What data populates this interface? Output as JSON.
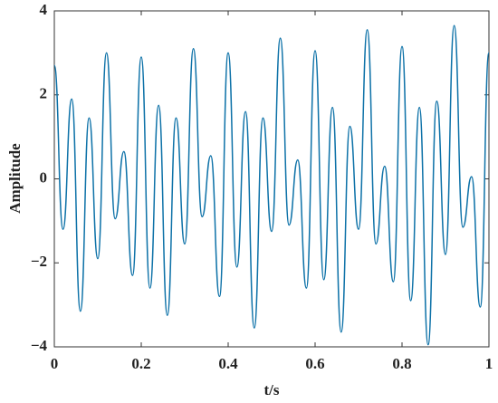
{
  "chart_data": {
    "type": "line",
    "x_label": "t/s",
    "y_label": "Amplitude",
    "x": [
      0,
      0.02,
      0.04,
      0.06,
      0.08,
      0.1,
      0.12,
      0.14,
      0.16,
      0.18,
      0.2,
      0.22,
      0.24,
      0.26,
      0.28,
      0.3,
      0.32,
      0.34,
      0.36,
      0.38,
      0.4,
      0.42,
      0.44,
      0.46,
      0.48,
      0.5,
      0.52,
      0.54,
      0.56,
      0.58,
      0.6,
      0.62,
      0.64,
      0.66,
      0.68,
      0.7,
      0.72,
      0.74,
      0.76,
      0.78,
      0.8,
      0.82,
      0.84,
      0.86,
      0.88,
      0.9,
      0.92,
      0.94,
      0.96,
      0.98,
      1
    ],
    "series": [
      {
        "color": "#0e72a8",
        "values": [
          2.7,
          -1.2,
          1.9,
          -3.15,
          1.45,
          -1.9,
          3.0,
          -0.95,
          0.65,
          -2.3,
          2.9,
          -2.6,
          1.75,
          -3.25,
          1.45,
          -1.55,
          3.1,
          -0.9,
          0.55,
          -2.8,
          3.0,
          -2.1,
          1.6,
          -3.55,
          1.45,
          -1.25,
          3.35,
          -1.1,
          0.45,
          -2.6,
          3.05,
          -2.4,
          1.7,
          -3.65,
          1.25,
          -1.2,
          3.55,
          -1.55,
          0.3,
          -2.45,
          3.15,
          -2.9,
          1.7,
          -3.95,
          1.85,
          -1.8,
          3.65,
          -1.15,
          0.05,
          -3.05,
          3.0
        ]
      }
    ],
    "xlim": [
      0,
      1
    ],
    "xticks": [
      0,
      0.2,
      0.4,
      0.6,
      0.8,
      1
    ],
    "ylim": [
      -4,
      4
    ],
    "yticks": [
      {
        "value": -4,
        "label": "−4"
      },
      {
        "value": -2,
        "label": "−2"
      },
      0,
      2,
      4
    ]
  }
}
